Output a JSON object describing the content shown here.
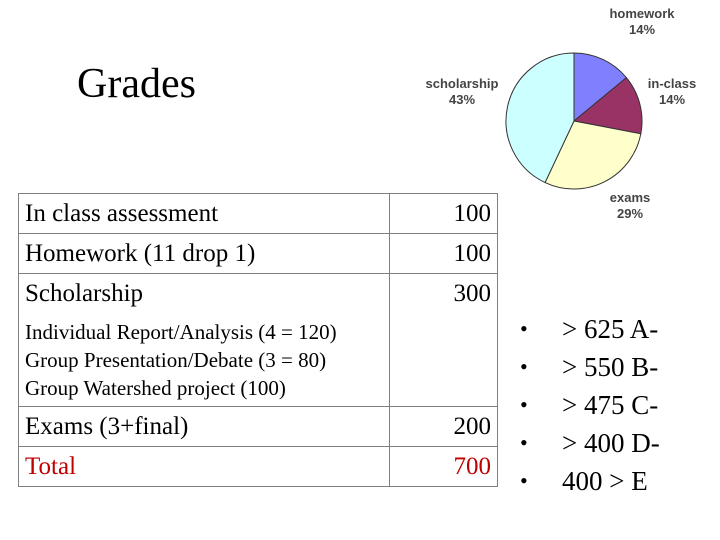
{
  "slide": {
    "title": "Grades"
  },
  "table": {
    "rows": [
      {
        "label": "In class assessment",
        "value": "100"
      },
      {
        "label": "Homework (11 drop 1)",
        "value": "100"
      },
      {
        "label": "Scholarship",
        "value": "300"
      }
    ],
    "scholarship_details": [
      "Individual Report/Analysis (4 = 120)",
      "Group Presentation/Debate  (3 = 80)",
      "Group Watershed project (100)"
    ],
    "exams": {
      "label": "Exams (3+final)",
      "value": "200"
    },
    "total": {
      "label": "Total",
      "value": "700"
    }
  },
  "chart_data": {
    "type": "pie",
    "title": "",
    "slices": [
      {
        "name": "homework",
        "value": 14,
        "label": "14%",
        "color": "#8080ff"
      },
      {
        "name": "in-class",
        "value": 14,
        "label": "14%",
        "color": "#993366"
      },
      {
        "name": "exams",
        "value": 29,
        "label": "29%",
        "color": "#ffffcc"
      },
      {
        "name": "scholarship",
        "value": 43,
        "label": "43%",
        "color": "#ccffff"
      }
    ]
  },
  "grading_scale": [
    "> 625 A-",
    "> 550 B-",
    "> 475 C-",
    "> 400 D-",
    "400 > E"
  ],
  "colors": {
    "total": "#c00000",
    "table_border": "#7f7f7f"
  }
}
